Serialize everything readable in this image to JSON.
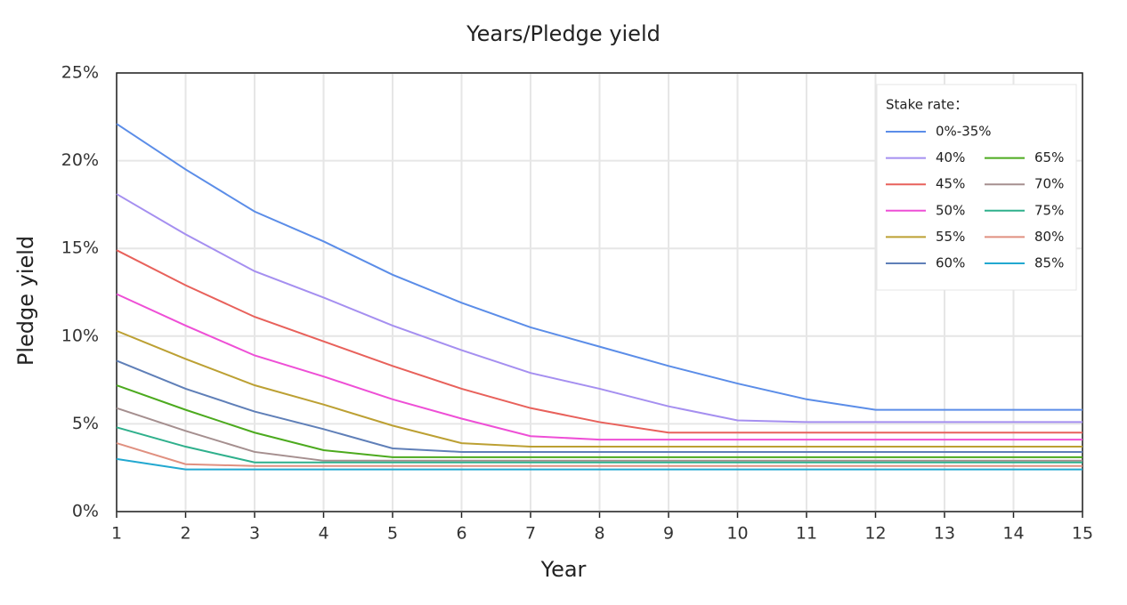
{
  "chart_data": {
    "type": "line",
    "title": "Years/Pledge yield",
    "xlabel": "Year",
    "ylabel": "Pledge yield",
    "legend_title": "Stake rate：",
    "legend": "upper right",
    "grid": true,
    "x": [
      1,
      2,
      3,
      4,
      5,
      6,
      7,
      8,
      9,
      10,
      11,
      12,
      13,
      14,
      15
    ],
    "xlim": [
      1,
      15
    ],
    "xticks": [
      1,
      2,
      3,
      4,
      5,
      6,
      7,
      8,
      9,
      10,
      11,
      12,
      13,
      14,
      15
    ],
    "ylim": [
      0,
      25
    ],
    "yticks": [
      {
        "value": 0,
        "label": "0%"
      },
      {
        "value": 5,
        "label": "5%"
      },
      {
        "value": 10,
        "label": "10%"
      },
      {
        "value": 15,
        "label": "15%"
      },
      {
        "value": 20,
        "label": "20%"
      },
      {
        "value": 25,
        "label": "25%"
      }
    ],
    "series": [
      {
        "name": "0%-35%",
        "color": "#5b8de8",
        "values": [
          22.1,
          19.5,
          17.1,
          15.4,
          13.5,
          11.9,
          10.5,
          9.4,
          8.3,
          7.3,
          6.4,
          5.8,
          5.8,
          5.8,
          5.8
        ]
      },
      {
        "name": "40%",
        "color": "#a58ff0",
        "values": [
          18.1,
          15.8,
          13.7,
          12.2,
          10.6,
          9.2,
          7.9,
          7.0,
          6.0,
          5.2,
          5.1,
          5.1,
          5.1,
          5.1,
          5.1
        ]
      },
      {
        "name": "45%",
        "color": "#e8615b",
        "values": [
          14.9,
          12.9,
          11.1,
          9.7,
          8.3,
          7.0,
          5.9,
          5.1,
          4.5,
          4.5,
          4.5,
          4.5,
          4.5,
          4.5,
          4.5
        ]
      },
      {
        "name": "50%",
        "color": "#ee4fd6",
        "values": [
          12.4,
          10.6,
          8.9,
          7.7,
          6.4,
          5.3,
          4.3,
          4.1,
          4.1,
          4.1,
          4.1,
          4.1,
          4.1,
          4.1,
          4.1
        ]
      },
      {
        "name": "55%",
        "color": "#bca033",
        "values": [
          10.3,
          8.7,
          7.2,
          6.1,
          4.9,
          3.9,
          3.7,
          3.7,
          3.7,
          3.7,
          3.7,
          3.7,
          3.7,
          3.7,
          3.7
        ]
      },
      {
        "name": "60%",
        "color": "#5f7fb8",
        "values": [
          8.6,
          7.0,
          5.7,
          4.7,
          3.6,
          3.4,
          3.4,
          3.4,
          3.4,
          3.4,
          3.4,
          3.4,
          3.4,
          3.4,
          3.4
        ]
      },
      {
        "name": "65%",
        "color": "#4caa1e",
        "values": [
          7.2,
          5.8,
          4.5,
          3.5,
          3.1,
          3.1,
          3.1,
          3.1,
          3.1,
          3.1,
          3.1,
          3.1,
          3.1,
          3.1,
          3.1
        ]
      },
      {
        "name": "70%",
        "color": "#a58f8f",
        "values": [
          5.9,
          4.6,
          3.4,
          2.9,
          2.9,
          2.9,
          2.9,
          2.9,
          2.9,
          2.9,
          2.9,
          2.9,
          2.9,
          2.9,
          2.9
        ]
      },
      {
        "name": "75%",
        "color": "#2fb08c",
        "values": [
          4.8,
          3.7,
          2.8,
          2.8,
          2.8,
          2.8,
          2.8,
          2.8,
          2.8,
          2.8,
          2.8,
          2.8,
          2.8,
          2.8,
          2.8
        ]
      },
      {
        "name": "80%",
        "color": "#e09080",
        "values": [
          3.9,
          2.7,
          2.6,
          2.6,
          2.6,
          2.6,
          2.6,
          2.6,
          2.6,
          2.6,
          2.6,
          2.6,
          2.6,
          2.6,
          2.6
        ]
      },
      {
        "name": "85%",
        "color": "#22a8d0",
        "values": [
          3.0,
          2.4,
          2.4,
          2.4,
          2.4,
          2.4,
          2.4,
          2.4,
          2.4,
          2.4,
          2.4,
          2.4,
          2.4,
          2.4,
          2.4
        ]
      }
    ]
  }
}
